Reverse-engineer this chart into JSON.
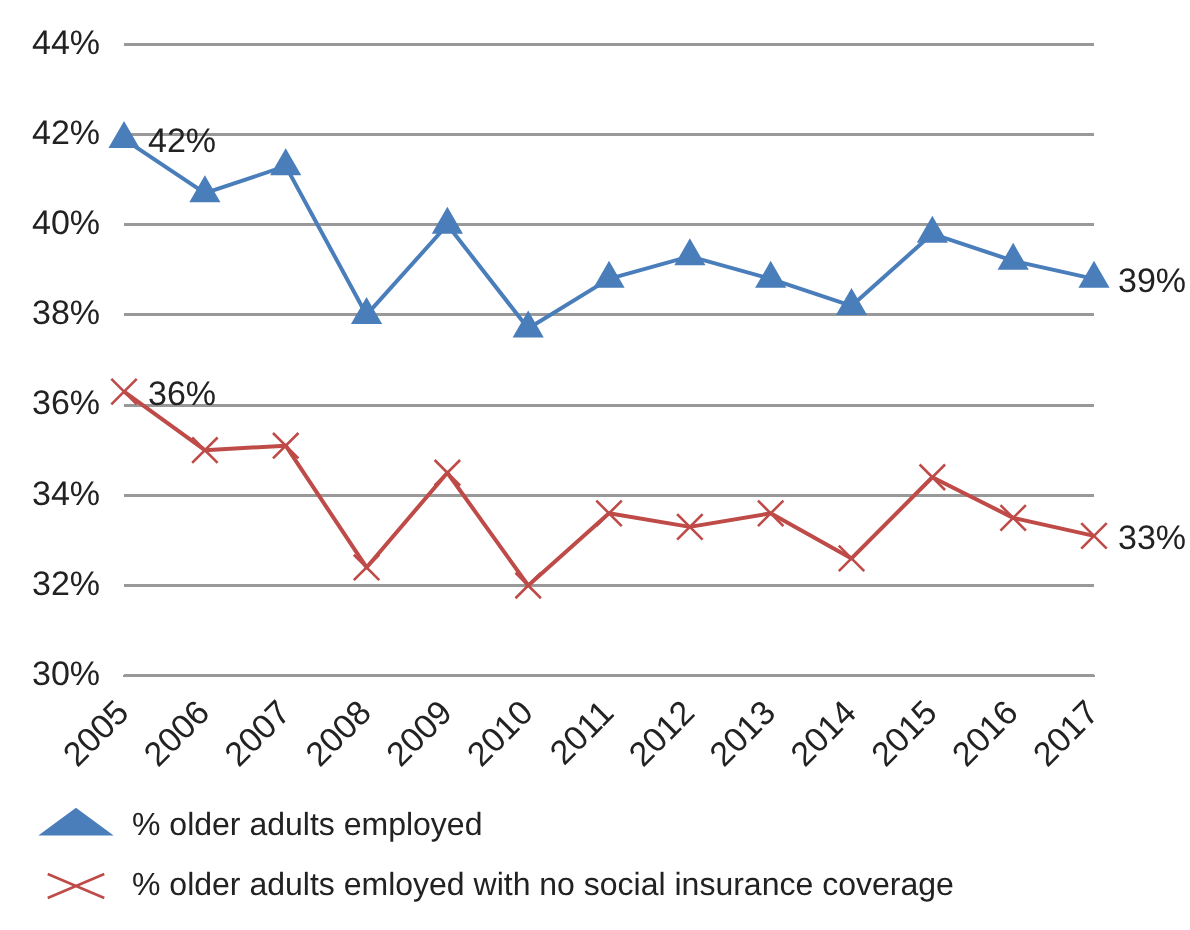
{
  "chart_data": {
    "type": "line",
    "categories": [
      "2005",
      "2006",
      "2007",
      "2008",
      "2009",
      "2010",
      "2011",
      "2012",
      "2013",
      "2014",
      "2015",
      "2016",
      "2017"
    ],
    "series": [
      {
        "name": "% older adults employed",
        "color": "#4a7ebb",
        "marker": "triangle",
        "values": [
          41.9,
          40.7,
          41.3,
          38.0,
          40.0,
          37.7,
          38.8,
          39.3,
          38.8,
          38.2,
          39.8,
          39.2,
          38.8
        ],
        "value_labels": [
          "42%",
          null,
          null,
          null,
          null,
          null,
          null,
          null,
          null,
          null,
          null,
          null,
          "39%"
        ]
      },
      {
        "name": "% older adults emloyed with no social insurance coverage",
        "color": "#be4b48",
        "marker": "cross",
        "values": [
          36.3,
          35.0,
          35.1,
          32.4,
          34.5,
          32.0,
          33.6,
          33.3,
          33.6,
          32.6,
          34.4,
          33.5,
          33.1
        ],
        "value_labels": [
          "36%",
          null,
          null,
          null,
          null,
          null,
          null,
          null,
          null,
          null,
          null,
          null,
          "33%"
        ]
      }
    ],
    "ylim": [
      30,
      44
    ],
    "yticks": [
      {
        "value": 30,
        "label": "30%"
      },
      {
        "value": 32,
        "label": "32%"
      },
      {
        "value": 34,
        "label": "34%"
      },
      {
        "value": 36,
        "label": "36%"
      },
      {
        "value": 38,
        "label": "38%"
      },
      {
        "value": 40,
        "label": "40%"
      },
      {
        "value": 42,
        "label": "42%"
      },
      {
        "value": 44,
        "label": "44%"
      }
    ],
    "grid": "y",
    "legend": "bottom"
  }
}
